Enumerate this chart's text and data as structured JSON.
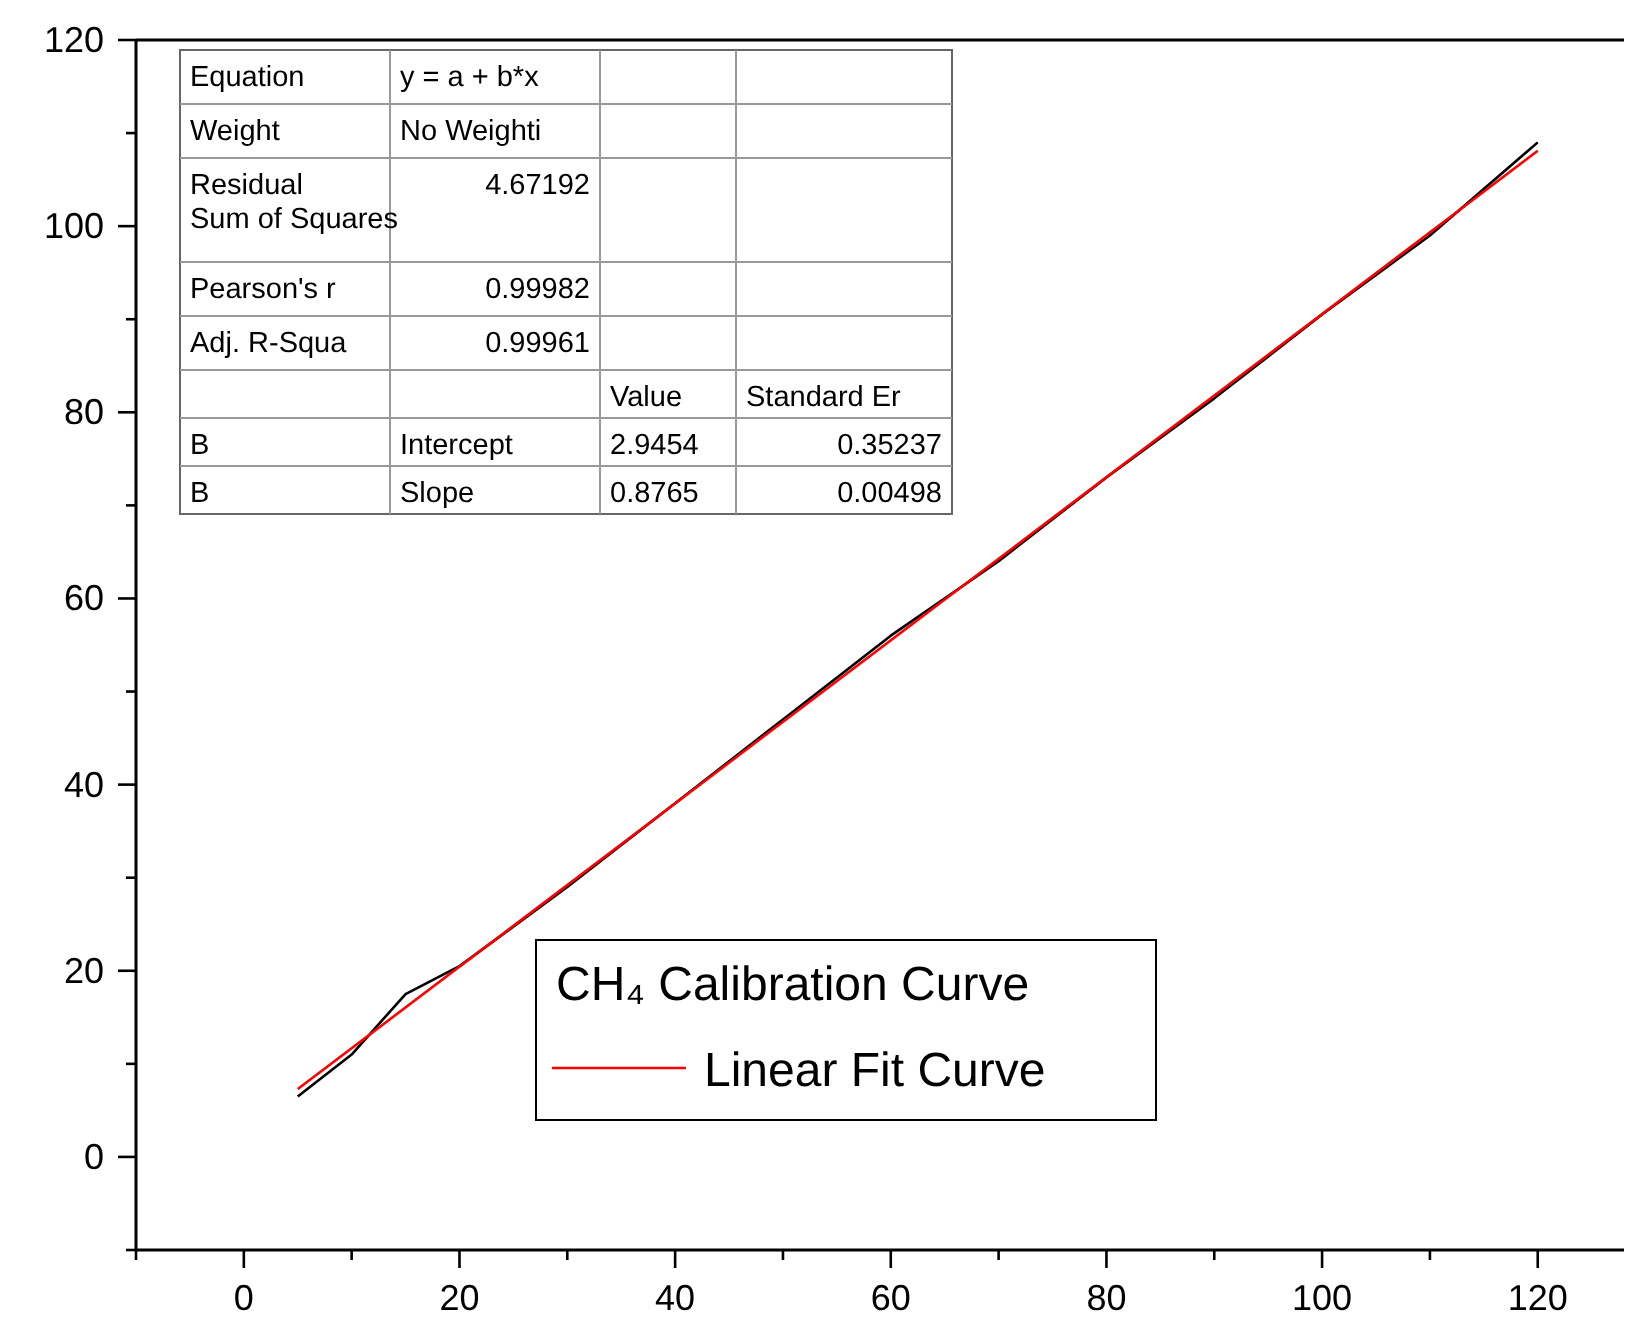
{
  "chart_data": {
    "type": "line",
    "legend_title": "CH₄ Calibration Curve",
    "legend": "bottom",
    "xlim": [
      -10,
      128
    ],
    "ylim": [
      -10,
      120
    ],
    "xticks": [
      {
        "value": -10,
        "label": null
      },
      0,
      {
        "value": 10,
        "label": null
      },
      20,
      {
        "value": 30,
        "label": null
      },
      40,
      {
        "value": 50,
        "label": null
      },
      60,
      {
        "value": 70,
        "label": null
      },
      80,
      {
        "value": 90,
        "label": null
      },
      100,
      {
        "value": 110,
        "label": null
      },
      120
    ],
    "yticks": [
      {
        "value": -10,
        "label": null
      },
      0,
      {
        "value": 10,
        "label": null
      },
      20,
      {
        "value": 30,
        "label": null
      },
      40,
      {
        "value": 50,
        "label": null
      },
      60,
      {
        "value": 70,
        "label": null
      },
      80,
      {
        "value": 90,
        "label": null
      },
      100,
      {
        "value": 110,
        "label": null
      },
      120
    ],
    "series": [
      {
        "color": "#000000",
        "x": [
          5,
          10,
          15,
          20,
          30,
          40,
          50,
          60,
          70,
          80,
          90,
          100,
          110,
          120
        ],
        "values": [
          6.5,
          11,
          17.5,
          20.5,
          29,
          38,
          47,
          56,
          64,
          73,
          81.5,
          90.5,
          99,
          109
        ]
      },
      {
        "name": "Linear Fit Curve",
        "color": "#ff0000",
        "x": [
          5,
          120
        ],
        "values": [
          7.3,
          108.1
        ]
      }
    ],
    "annotations": [
      "Equation",
      "y = a + b*x",
      "Weight",
      "No Weighti",
      "Residual Sum of Squares",
      "4.67192",
      "Pearson's r",
      "0.99982",
      "Adj. R-Squa",
      "0.99961",
      "Value",
      "Standard Er",
      "B",
      "Intercept",
      "2.9454",
      "0.35237",
      "B",
      "Slope",
      "0.8765",
      "0.00498"
    ]
  }
}
